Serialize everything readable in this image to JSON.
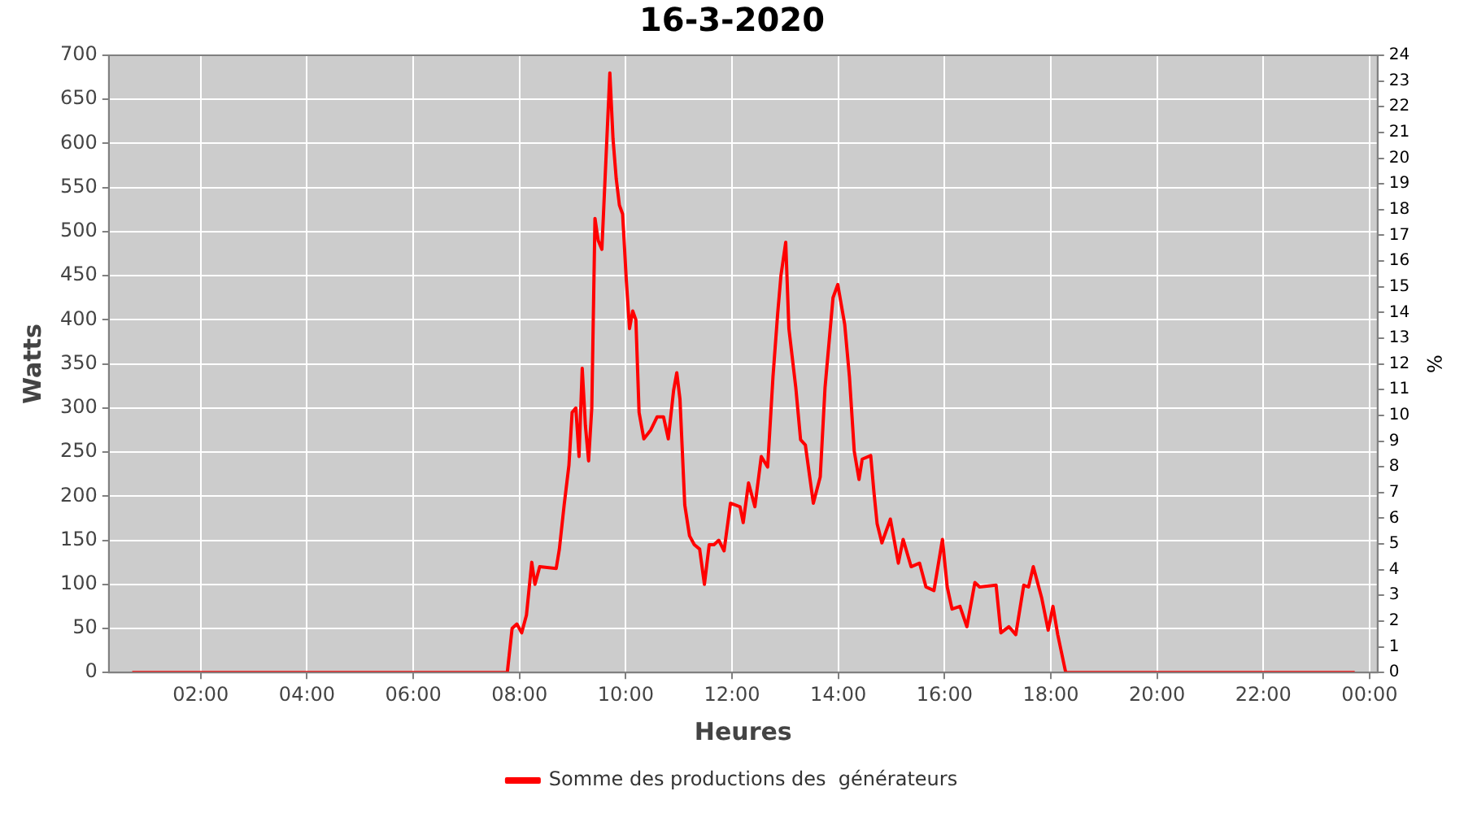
{
  "chart_data": {
    "type": "line",
    "title": "16-3-2020",
    "xlabel": "Heures",
    "ylabel": "Watts",
    "y2label": "%",
    "xlim": [
      0.27,
      24.15
    ],
    "xticks": [
      {
        "value": 2,
        "label": "02:00"
      },
      {
        "value": 4,
        "label": "04:00"
      },
      {
        "value": 6,
        "label": "06:00"
      },
      {
        "value": 8,
        "label": "08:00"
      },
      {
        "value": 10,
        "label": "10:00"
      },
      {
        "value": 12,
        "label": "12:00"
      },
      {
        "value": 14,
        "label": "14:00"
      },
      {
        "value": 16,
        "label": "16:00"
      },
      {
        "value": 18,
        "label": "18:00"
      },
      {
        "value": 20,
        "label": "20:00"
      },
      {
        "value": 22,
        "label": "22:00"
      },
      {
        "value": 24,
        "label": "00:00"
      }
    ],
    "ylim": [
      0,
      700
    ],
    "yticks": [
      0,
      50,
      100,
      150,
      200,
      250,
      300,
      350,
      400,
      450,
      500,
      550,
      600,
      650,
      700
    ],
    "y2lim": [
      0,
      24
    ],
    "y2ticks": [
      0,
      1,
      2,
      3,
      4,
      5,
      6,
      7,
      8,
      9,
      10,
      11,
      12,
      13,
      14,
      15,
      16,
      17,
      18,
      19,
      20,
      21,
      22,
      23,
      24
    ],
    "grid": true,
    "legend": "bottom",
    "marker": "none",
    "line_style": "solid",
    "series": [
      {
        "name": "Somme des productions des  générateurs",
        "color": "#ff0000",
        "x": [
          0.71,
          7.46,
          7.77,
          7.86,
          7.95,
          8.04,
          8.13,
          8.23,
          8.29,
          8.38,
          8.69,
          8.75,
          8.84,
          8.93,
          8.99,
          9.06,
          9.12,
          9.18,
          9.24,
          9.3,
          9.36,
          9.42,
          9.48,
          9.55,
          9.61,
          9.7,
          9.76,
          9.82,
          9.88,
          9.94,
          10.01,
          10.07,
          10.13,
          10.19,
          10.25,
          10.34,
          10.47,
          10.59,
          10.71,
          10.8,
          10.9,
          10.96,
          11.02,
          11.11,
          11.2,
          11.29,
          11.39,
          11.48,
          11.57,
          11.66,
          11.75,
          11.85,
          11.97,
          12.15,
          12.21,
          12.31,
          12.43,
          12.55,
          12.67,
          12.77,
          12.86,
          12.92,
          13.01,
          13.07,
          13.2,
          13.29,
          13.38,
          13.53,
          13.66,
          13.75,
          13.9,
          13.99,
          14.12,
          14.21,
          14.3,
          14.39,
          14.45,
          14.61,
          14.67,
          14.73,
          14.82,
          14.98,
          15.13,
          15.22,
          15.37,
          15.53,
          15.65,
          15.8,
          15.96,
          16.05,
          16.14,
          16.29,
          16.42,
          16.57,
          16.66,
          16.97,
          17.06,
          17.21,
          17.34,
          17.49,
          17.58,
          17.67,
          17.83,
          17.95,
          18.04,
          18.13,
          18.28,
          23.72
        ],
        "values": [
          0,
          0,
          0,
          50,
          55,
          45,
          65,
          125,
          100,
          120,
          118,
          140,
          190,
          235,
          295,
          300,
          245,
          345,
          280,
          240,
          300,
          515,
          490,
          480,
          560,
          680,
          605,
          560,
          530,
          520,
          445,
          390,
          410,
          400,
          295,
          265,
          275,
          290,
          290,
          265,
          320,
          340,
          310,
          190,
          155,
          145,
          140,
          100,
          145,
          145,
          150,
          138,
          192,
          188,
          170,
          215,
          188,
          245,
          233,
          335,
          408,
          450,
          488,
          390,
          323,
          264,
          258,
          192,
          222,
          323,
          425,
          440,
          395,
          335,
          251,
          219,
          242,
          246,
          205,
          169,
          147,
          174,
          124,
          151,
          120,
          124,
          97,
          93,
          151,
          97,
          72,
          75,
          52,
          102,
          97,
          99,
          45,
          52,
          43,
          99,
          97,
          120,
          84,
          48,
          75,
          43,
          0,
          0
        ]
      }
    ]
  }
}
